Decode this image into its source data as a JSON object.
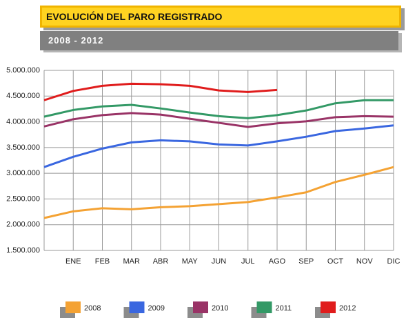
{
  "chart_data": {
    "type": "line",
    "title": "EVOLUCIÓN DEL PARO REGISTRADO",
    "subtitle": "2008 - 2012",
    "categories": [
      null,
      "ENE",
      "FEB",
      "MAR",
      "ABR",
      "MAY",
      "JUN",
      "JUL",
      "AGO",
      "SEP",
      "OCT",
      "NOV",
      "DIC"
    ],
    "series": [
      {
        "name": "2008",
        "color": "#f4a233",
        "values": [
          2130000,
          2260000,
          2320000,
          2300000,
          2340000,
          2360000,
          2400000,
          2440000,
          2530000,
          2630000,
          2830000,
          2970000,
          3120000
        ]
      },
      {
        "name": "2009",
        "color": "#3a67e0",
        "values": [
          3120000,
          3320000,
          3480000,
          3600000,
          3640000,
          3620000,
          3560000,
          3540000,
          3620000,
          3710000,
          3820000,
          3870000,
          3930000
        ]
      },
      {
        "name": "2010",
        "color": "#993366",
        "values": [
          3910000,
          4050000,
          4130000,
          4170000,
          4140000,
          4060000,
          3980000,
          3900000,
          3970000,
          4010000,
          4090000,
          4110000,
          4100000
        ]
      },
      {
        "name": "2011",
        "color": "#339966",
        "values": [
          4100000,
          4230000,
          4300000,
          4330000,
          4260000,
          4180000,
          4110000,
          4070000,
          4130000,
          4220000,
          4360000,
          4420000,
          4420000
        ]
      },
      {
        "name": "2012",
        "color": "#e01c1c",
        "values": [
          4420000,
          4600000,
          4700000,
          4740000,
          4730000,
          4700000,
          4610000,
          4580000,
          4620000,
          null,
          null,
          null,
          null
        ]
      }
    ],
    "ylim": [
      1500000,
      5000000
    ],
    "yticks": [
      {
        "value": 1500000,
        "label": "1.500.000"
      },
      {
        "value": 2000000,
        "label": "2.000.000"
      },
      {
        "value": 2500000,
        "label": "2.500.000"
      },
      {
        "value": 3000000,
        "label": "3.000.000"
      },
      {
        "value": 3500000,
        "label": "3.500.000"
      },
      {
        "value": 4000000,
        "label": "4.000.000"
      },
      {
        "value": 4500000,
        "label": "4.500.000"
      },
      {
        "value": 5000000,
        "label": "5.000.000"
      }
    ],
    "grid": true,
    "legend": "bottom"
  }
}
